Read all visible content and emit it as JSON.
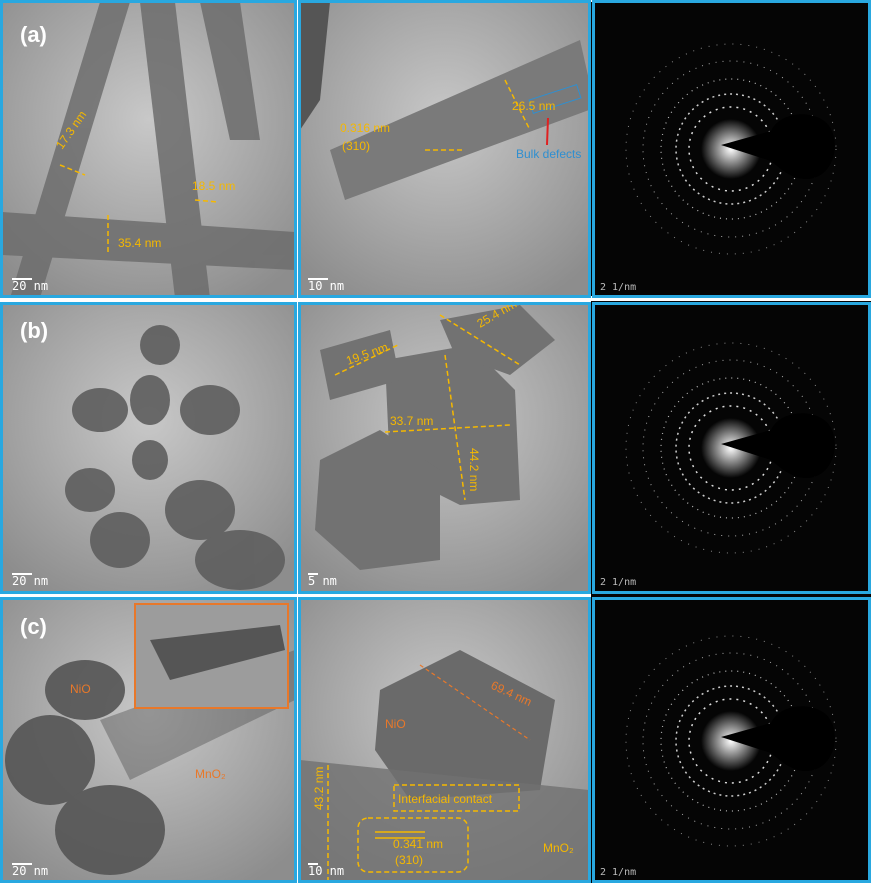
{
  "rows": [
    {
      "label": "(a)",
      "panels": [
        {
          "annotations": [
            "17.3 nm",
            "18.5 nm",
            "35.4 nm"
          ],
          "scale_bar": "20 nm"
        },
        {
          "annotations": [
            "0.316 nm",
            "(310)",
            "26.5 nm",
            "Bulk defects"
          ],
          "scale_bar": "10 nm"
        },
        {
          "scale_bar": "2 1/nm"
        }
      ]
    },
    {
      "label": "(b)",
      "panels": [
        {
          "scale_bar": "20 nm"
        },
        {
          "annotations": [
            "19.5 nm",
            "25.4 nm",
            "33.7 nm",
            "44.2 nm"
          ],
          "scale_bar": "5 nm"
        },
        {
          "scale_bar": "2 1/nm"
        }
      ]
    },
    {
      "label": "(c)",
      "panels": [
        {
          "annotations": [
            "NiO",
            "MnO₂"
          ],
          "scale_bar": "20 nm"
        },
        {
          "annotations": [
            "69.4 nm",
            "NiO",
            "Interfacial contact",
            "43.2 nm",
            "0.341 nm",
            "(310)",
            "MnO₂"
          ],
          "scale_bar": "10 nm"
        },
        {
          "scale_bar": "2 1/nm"
        }
      ]
    }
  ]
}
